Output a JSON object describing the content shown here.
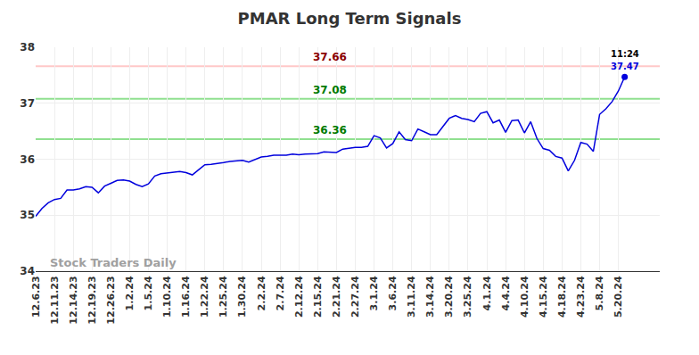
{
  "chart_data": {
    "type": "line",
    "title": "PMAR Long Term Signals",
    "categories": [
      "12.6.23",
      null,
      null,
      "12.11.23",
      null,
      null,
      "12.14.23",
      null,
      null,
      "12.19.23",
      null,
      null,
      "12.26.23",
      null,
      null,
      "1.2.24",
      null,
      null,
      "1.5.24",
      null,
      null,
      "1.10.24",
      null,
      null,
      "1.16.24",
      null,
      null,
      "1.22.24",
      null,
      null,
      "1.25.24",
      null,
      null,
      "1.30.24",
      null,
      null,
      "2.2.24",
      null,
      null,
      "2.7.24",
      null,
      null,
      "2.12.24",
      null,
      null,
      "2.15.24",
      null,
      null,
      "2.21.24",
      null,
      null,
      "2.27.24",
      null,
      null,
      "3.1.24",
      null,
      null,
      "3.6.24",
      null,
      null,
      "3.11.24",
      null,
      null,
      "3.14.24",
      null,
      null,
      "3.20.24",
      null,
      null,
      "3.25.24",
      null,
      null,
      "4.1.24",
      null,
      null,
      "4.4.24",
      null,
      null,
      "4.10.24",
      null,
      null,
      "4.15.24",
      null,
      null,
      "4.18.24",
      null,
      null,
      "4.23.24",
      null,
      null,
      "5.8.24",
      null,
      null,
      "5.20.24",
      null
    ],
    "values": [
      34.98,
      35.12,
      35.22,
      35.28,
      35.3,
      35.45,
      35.45,
      35.47,
      35.51,
      35.5,
      35.4,
      35.52,
      35.57,
      35.62,
      35.63,
      35.61,
      35.55,
      35.51,
      35.56,
      35.7,
      35.74,
      35.75,
      35.77,
      35.78,
      35.76,
      35.72,
      35.81,
      35.9,
      35.91,
      35.92,
      35.94,
      35.96,
      35.97,
      35.98,
      35.95,
      35.99,
      36.04,
      36.05,
      36.07,
      36.07,
      36.07,
      36.09,
      36.08,
      36.09,
      36.1,
      36.1,
      36.13,
      36.13,
      36.12,
      36.18,
      36.2,
      36.21,
      36.21,
      36.23,
      36.42,
      36.38,
      36.2,
      36.28,
      36.49,
      36.35,
      36.33,
      36.54,
      36.49,
      36.44,
      36.44,
      36.58,
      36.73,
      36.78,
      36.73,
      36.71,
      36.67,
      36.82,
      36.85,
      36.65,
      36.7,
      36.48,
      36.69,
      36.7,
      36.47,
      36.67,
      36.37,
      36.19,
      36.16,
      36.05,
      36.02,
      35.79,
      35.98,
      36.3,
      36.27,
      36.14,
      36.8,
      36.9,
      37.03,
      37.22,
      37.47
    ],
    "color": "#0000dd",
    "ylim": [
      34,
      38
    ],
    "yticks": [
      34,
      35,
      36,
      37,
      38
    ],
    "grid": true,
    "signal_lines": [
      {
        "value": 37.66,
        "color": "#ffc8c8"
      },
      {
        "value": 37.08,
        "color": "#90e090"
      },
      {
        "value": 36.36,
        "color": "#90e090"
      }
    ],
    "last_time": "11:24",
    "watermark": "Stock Traders Daily"
  }
}
